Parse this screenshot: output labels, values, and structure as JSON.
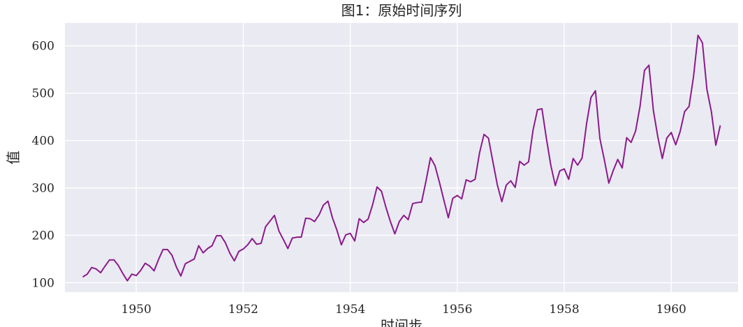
{
  "chart_data": {
    "type": "line",
    "title": "图1：原始时间序列",
    "xlabel": "时间步",
    "ylabel": "值",
    "xlim": [
      "1948-09",
      "1961-04"
    ],
    "ylim": [
      80,
      648
    ],
    "x_ticks": [
      "1950",
      "1952",
      "1954",
      "1956",
      "1958",
      "1960"
    ],
    "y_ticks": [
      100,
      200,
      300,
      400,
      500,
      600
    ],
    "grid": true,
    "legend": "none",
    "colors": {
      "background": "#eaeaf2",
      "grid": "#ffffff",
      "line": "#8b1a8b",
      "text": "#262626"
    },
    "series": [
      {
        "x_start": "1949-01",
        "frequency": "monthly",
        "values": [
          112,
          118,
          132,
          129,
          121,
          135,
          148,
          148,
          136,
          119,
          104,
          118,
          115,
          126,
          141,
          135,
          125,
          149,
          170,
          170,
          158,
          133,
          114,
          140,
          145,
          150,
          178,
          163,
          172,
          178,
          199,
          199,
          184,
          162,
          146,
          166,
          171,
          180,
          193,
          181,
          183,
          218,
          230,
          242,
          209,
          191,
          172,
          194,
          196,
          196,
          236,
          235,
          229,
          243,
          264,
          272,
          237,
          211,
          180,
          201,
          204,
          188,
          235,
          227,
          234,
          264,
          302,
          293,
          259,
          229,
          203,
          229,
          242,
          233,
          267,
          269,
          270,
          315,
          364,
          347,
          312,
          274,
          237,
          278,
          284,
          277,
          317,
          313,
          318,
          374,
          413,
          405,
          355,
          306,
          271,
          306,
          315,
          301,
          356,
          348,
          355,
          422,
          465,
          467,
          404,
          347,
          305,
          336,
          340,
          318,
          362,
          348,
          363,
          435,
          491,
          505,
          404,
          359,
          310,
          337,
          360,
          342,
          406,
          396,
          420,
          472,
          548,
          559,
          463,
          407,
          362,
          405,
          417,
          391,
          419,
          461,
          472,
          535,
          622,
          606,
          508,
          461,
          390,
          432
        ]
      }
    ]
  }
}
